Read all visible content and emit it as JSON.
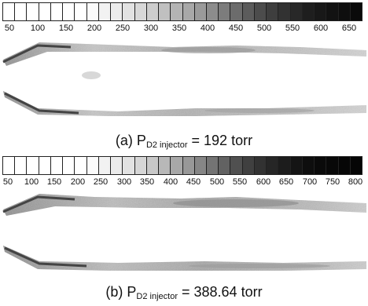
{
  "figure_a": {
    "colorbar_ticks": [
      "50",
      "100",
      "150",
      "200",
      "250",
      "300",
      "350",
      "400",
      "450",
      "500",
      "550",
      "600",
      "650"
    ],
    "caption": {
      "prefix": "(a)  P",
      "sub": "D2  injector",
      "suffix": " =  192  torr"
    }
  },
  "figure_b": {
    "colorbar_ticks": [
      "50",
      "100",
      "150",
      "200",
      "250",
      "300",
      "350",
      "400",
      "450",
      "500",
      "550",
      "600",
      "650",
      "700",
      "750",
      "800"
    ],
    "caption": {
      "prefix": "(b)  P",
      "sub": "D2  injector",
      "suffix": " =  388.64  torr"
    }
  }
}
